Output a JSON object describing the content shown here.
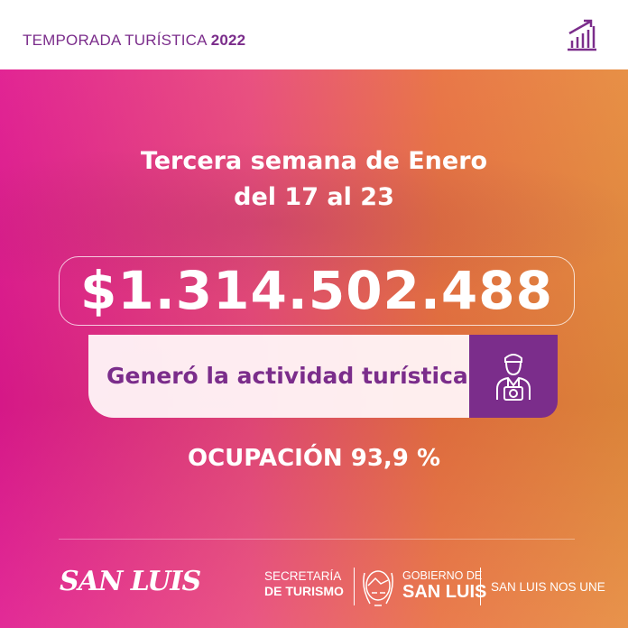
{
  "header": {
    "title": "TEMPORADA TURÍSTICA",
    "year": "2022",
    "icon": "chart-growth-icon"
  },
  "main": {
    "heading_line1": "Tercera semana de Enero",
    "heading_line2": "del 17 al 23",
    "amount": "$1.314.502.488",
    "amount_caption": "Generó la actividad turística",
    "caption_icon": "tourist-camera-icon",
    "occupancy": "OCUPACIÓN 93,9 %"
  },
  "footer": {
    "brand_logo": "SAN LUIS",
    "secretaria_line1": "SECRETARÍA",
    "secretaria_line2": "DE TURISMO",
    "gobierno_line1": "GOBIERNO DE",
    "gobierno_line2": "SAN LUIS",
    "slogan": "SAN LUIS NOS UNE"
  },
  "colors": {
    "purple": "#7b2d8b",
    "pink": "#e0198e",
    "orange": "#e68a3c"
  }
}
